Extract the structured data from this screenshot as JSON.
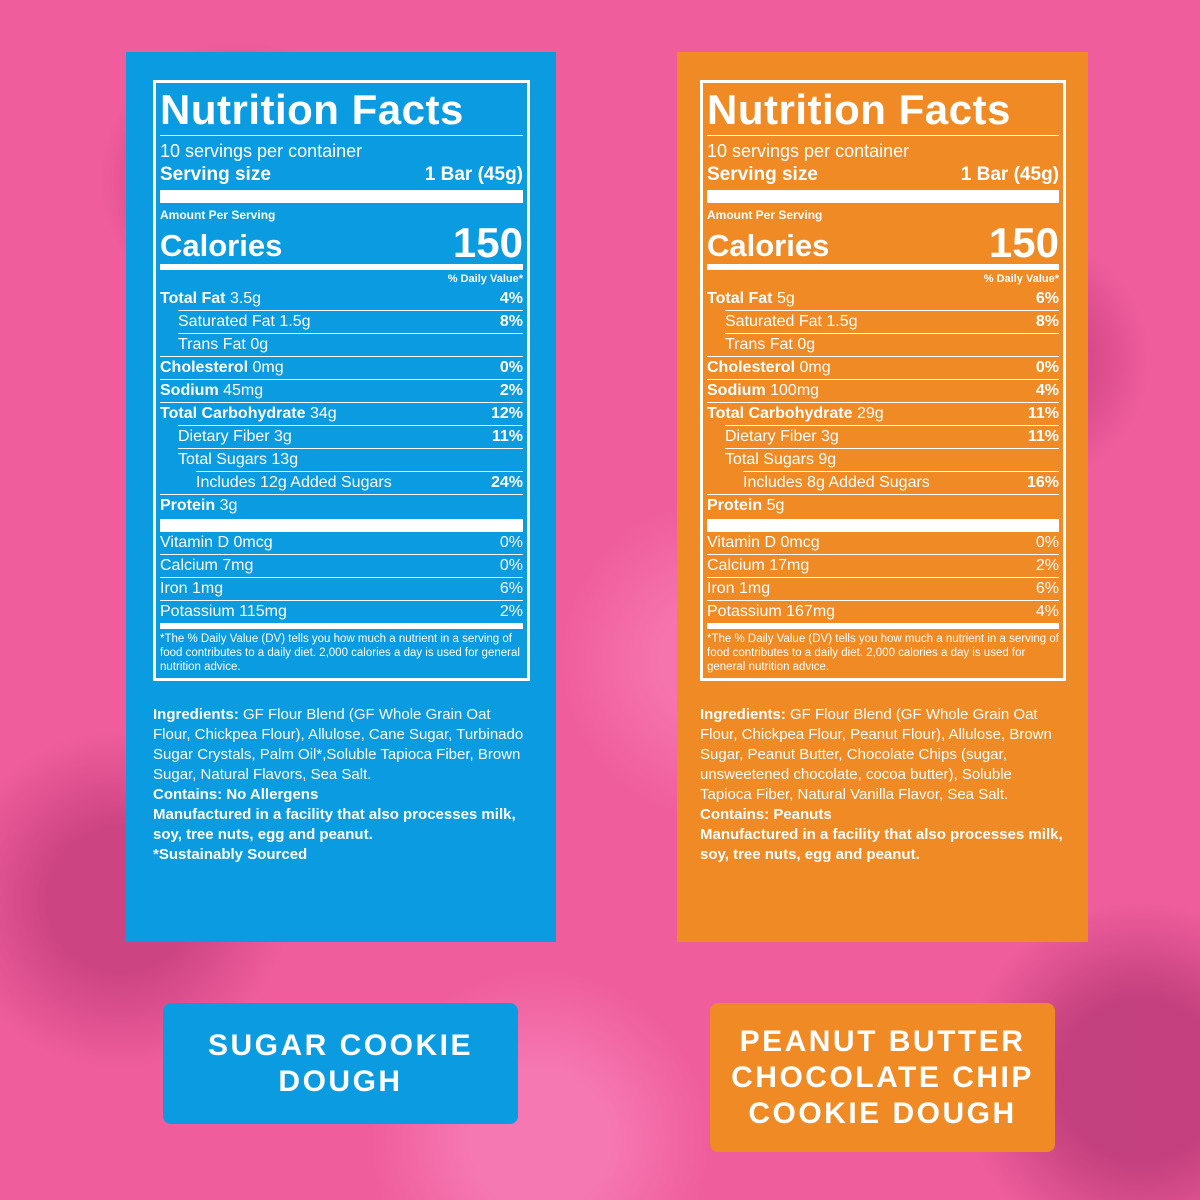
{
  "panels": [
    {
      "title": "Nutrition Facts",
      "servings": "10 servings per container",
      "serving_size_label": "Serving size",
      "serving_size": "1 Bar (45g)",
      "amount_per_serving": "Amount Per Serving",
      "calories_label": "Calories",
      "calories": 150,
      "dv_header": "% Daily Value*",
      "nutrients": [
        {
          "name": "Total Fat",
          "amount": "3.5g",
          "dv": "4%",
          "sub": [
            {
              "name": "Saturated Fat",
              "amount": "1.5g",
              "dv": "8%"
            },
            {
              "name": "Trans Fat",
              "amount": "0g"
            }
          ]
        },
        {
          "name": "Cholesterol",
          "amount": "0mg",
          "dv": "0%"
        },
        {
          "name": "Sodium",
          "amount": "45mg",
          "dv": "2%"
        },
        {
          "name": "Total Carbohydrate",
          "amount": "34g",
          "dv": "12%",
          "sub": [
            {
              "name": "Dietary Fiber",
              "amount": "3g",
              "dv": "11%"
            },
            {
              "name": "Total Sugars",
              "amount": "13g",
              "sub": [
                {
                  "name": "Includes 12g Added Sugars",
                  "dv": "24%"
                }
              ]
            }
          ]
        },
        {
          "name": "Protein",
          "amount": "3g"
        }
      ],
      "vitamins": [
        {
          "name": "Vitamin D",
          "amount": "0mcg",
          "dv": "0%"
        },
        {
          "name": "Calcium",
          "amount": "7mg",
          "dv": "0%"
        },
        {
          "name": "Iron",
          "amount": "1mg",
          "dv": "6%"
        },
        {
          "name": "Potassium",
          "amount": "115mg",
          "dv": "2%"
        }
      ],
      "footnote": "*The % Daily Value (DV) tells you how much a nutrient in a serving of food contributes to a daily diet. 2,000 calories a day is used for general nutrition advice.",
      "ingredients_label": "Ingredients:",
      "ingredients": "GF Flour Blend (GF Whole Grain Oat Flour, Chickpea Flour), Allulose, Cane Sugar, Turbinado Sugar Crystals, Palm Oil*,Soluble Tapioca Fiber, Brown Sugar, Natural Flavors, Sea Salt.",
      "allergens": [
        "Contains: No Allergens",
        "Manufactured in a facility that also processes milk, soy, tree nuts, egg and peanut.",
        "*Sustainably Sourced"
      ],
      "product_name": "SUGAR COOKIE DOUGH"
    },
    {
      "title": "Nutrition Facts",
      "servings": "10 servings per container",
      "serving_size_label": "Serving size",
      "serving_size": "1 Bar (45g)",
      "amount_per_serving": "Amount Per Serving",
      "calories_label": "Calories",
      "calories": 150,
      "dv_header": "% Daily Value*",
      "nutrients": [
        {
          "name": "Total Fat",
          "amount": "5g",
          "dv": "6%",
          "sub": [
            {
              "name": "Saturated Fat",
              "amount": "1.5g",
              "dv": "8%"
            },
            {
              "name": "Trans Fat",
              "amount": "0g"
            }
          ]
        },
        {
          "name": "Cholesterol",
          "amount": "0mg",
          "dv": "0%"
        },
        {
          "name": "Sodium",
          "amount": "100mg",
          "dv": "4%"
        },
        {
          "name": "Total Carbohydrate",
          "amount": "29g",
          "dv": "11%",
          "sub": [
            {
              "name": "Dietary Fiber",
              "amount": "3g",
              "dv": "11%"
            },
            {
              "name": "Total Sugars",
              "amount": "9g",
              "sub": [
                {
                  "name": "Includes 8g Added Sugars",
                  "dv": "16%"
                }
              ]
            }
          ]
        },
        {
          "name": "Protein",
          "amount": "5g"
        }
      ],
      "vitamins": [
        {
          "name": "Vitamin D",
          "amount": "0mcg",
          "dv": "0%"
        },
        {
          "name": "Calcium",
          "amount": "17mg",
          "dv": "2%"
        },
        {
          "name": "Iron",
          "amount": "1mg",
          "dv": "6%"
        },
        {
          "name": "Potassium",
          "amount": "167mg",
          "dv": "4%"
        }
      ],
      "footnote": "*The % Daily Value (DV) tells you how much a nutrient in a serving of food contributes to a daily diet. 2,000 calories a day is used for general nutrition advice.",
      "ingredients_label": "Ingredients:",
      "ingredients": "GF Flour Blend (GF Whole Grain Oat Flour, Chickpea Flour, Peanut Flour), Allulose, Brown Sugar, Peanut Butter, Chocolate Chips (sugar, unsweetened chocolate, cocoa butter), Soluble Tapioca Fiber, Natural Vanilla Flavor, Sea Salt.",
      "allergens": [
        "Contains: Peanuts",
        "Manufactured in a facility that also processes milk, soy, tree nuts, egg and peanut."
      ],
      "product_name": "PEANUT BUTTER CHOCOLATE CHIP COOKIE DOUGH"
    }
  ]
}
